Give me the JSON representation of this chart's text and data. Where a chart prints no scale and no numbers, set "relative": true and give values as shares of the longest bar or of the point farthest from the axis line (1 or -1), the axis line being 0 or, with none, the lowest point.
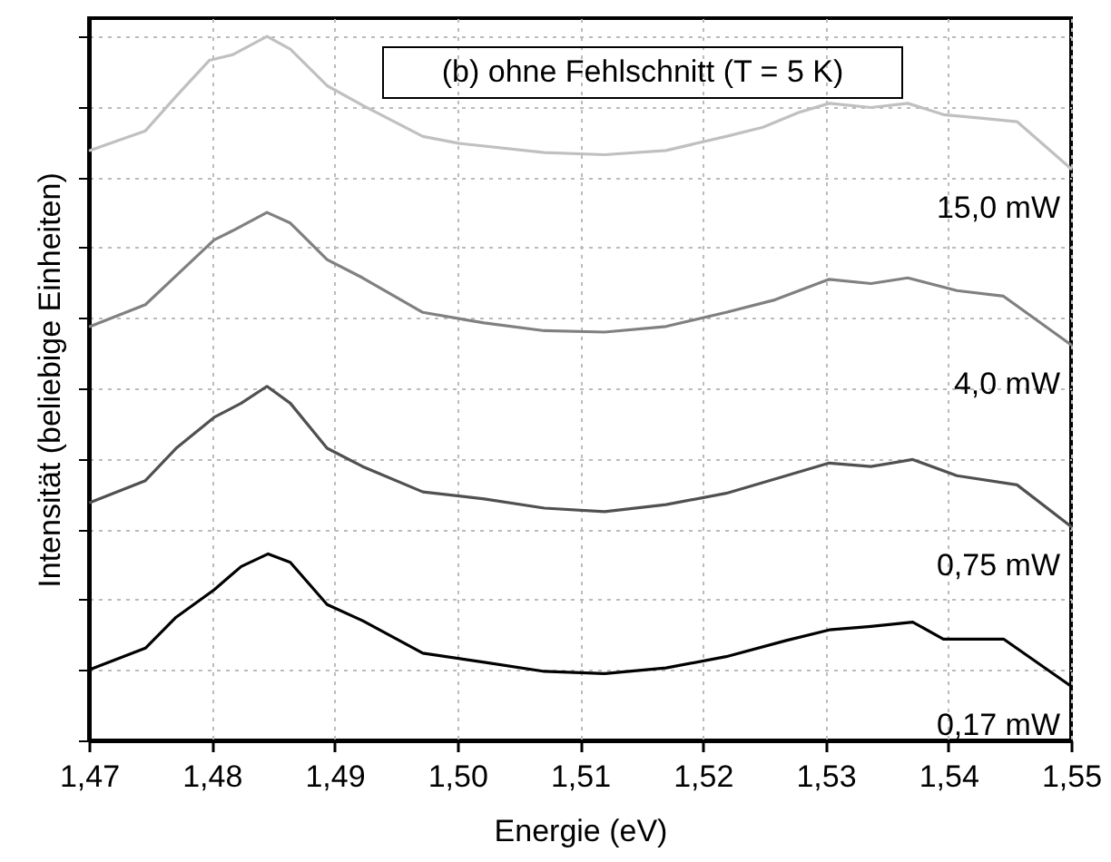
{
  "chart_data": {
    "type": "line",
    "relative": true,
    "xlabel": "Energie (eV)",
    "ylabel": "Intensität (beliebige Einheiten)",
    "annotations": [
      "(b) ohne Fehlschnitt (T = 5 K)"
    ],
    "xlim": [
      1.47,
      1.55
    ],
    "xticks": [
      {
        "value": 1.47,
        "label": "1,47"
      },
      {
        "value": 1.48,
        "label": "1,48"
      },
      {
        "value": 1.49,
        "label": "1,49"
      },
      {
        "value": 1.5,
        "label": "1,50"
      },
      {
        "value": 1.51,
        "label": "1,51"
      },
      {
        "value": 1.52,
        "label": "1,52"
      },
      {
        "value": 1.53,
        "label": "1,53"
      },
      {
        "value": 1.54,
        "label": "1,54"
      },
      {
        "value": 1.55,
        "label": "1,55"
      }
    ],
    "grid": true,
    "line_style": "solid",
    "series": [
      {
        "name": "15,0 mW",
        "color": "#c0c0c0",
        "x": [
          1.4701,
          1.4746,
          1.4771,
          1.4798,
          1.4817,
          1.4845,
          1.4864,
          1.4894,
          1.4923,
          1.4972,
          1.5002,
          1.5071,
          1.512,
          1.517,
          1.5219,
          1.5249,
          1.5278,
          1.5303,
          1.5337,
          1.5367,
          1.5396,
          1.5426,
          1.5456,
          1.55
        ],
        "values": [
          0.838,
          0.866,
          0.915,
          0.966,
          0.974,
          1.0,
          0.982,
          0.93,
          0.902,
          0.858,
          0.848,
          0.835,
          0.832,
          0.838,
          0.858,
          0.871,
          0.892,
          0.905,
          0.899,
          0.905,
          0.889,
          0.884,
          0.879,
          0.812
        ]
      },
      {
        "name": "4,0 mW",
        "color": "#808080",
        "x": [
          1.4701,
          1.4746,
          1.4771,
          1.4802,
          1.4817,
          1.4845,
          1.4864,
          1.4894,
          1.4923,
          1.4972,
          1.5022,
          1.5071,
          1.512,
          1.517,
          1.5219,
          1.5259,
          1.5303,
          1.5337,
          1.5367,
          1.5407,
          1.5445,
          1.55
        ],
        "values": [
          0.588,
          0.619,
          0.66,
          0.711,
          0.724,
          0.75,
          0.735,
          0.683,
          0.657,
          0.608,
          0.593,
          0.582,
          0.58,
          0.588,
          0.608,
          0.626,
          0.655,
          0.649,
          0.657,
          0.639,
          0.631,
          0.562
        ]
      },
      {
        "name": "0,75 mW",
        "color": "#505050",
        "x": [
          1.4701,
          1.4746,
          1.4771,
          1.4802,
          1.4824,
          1.4845,
          1.4864,
          1.4894,
          1.4923,
          1.4972,
          1.5022,
          1.5071,
          1.512,
          1.517,
          1.5219,
          1.5268,
          1.5303,
          1.5337,
          1.5371,
          1.5407,
          1.5456,
          1.55
        ],
        "values": [
          0.338,
          0.369,
          0.415,
          0.459,
          0.479,
          0.503,
          0.479,
          0.415,
          0.389,
          0.353,
          0.343,
          0.33,
          0.325,
          0.335,
          0.351,
          0.376,
          0.394,
          0.389,
          0.399,
          0.376,
          0.363,
          0.304
        ]
      },
      {
        "name": "0,17 mW",
        "color": "#000000",
        "x": [
          1.4701,
          1.4746,
          1.4771,
          1.4802,
          1.4824,
          1.4846,
          1.4864,
          1.4894,
          1.4923,
          1.4972,
          1.5022,
          1.5071,
          1.512,
          1.517,
          1.5219,
          1.5268,
          1.5303,
          1.5337,
          1.5371,
          1.5396,
          1.5445,
          1.55
        ],
        "values": [
          0.101,
          0.131,
          0.175,
          0.214,
          0.247,
          0.265,
          0.253,
          0.193,
          0.17,
          0.124,
          0.111,
          0.098,
          0.095,
          0.103,
          0.119,
          0.142,
          0.157,
          0.162,
          0.168,
          0.144,
          0.144,
          0.077
        ]
      }
    ]
  }
}
